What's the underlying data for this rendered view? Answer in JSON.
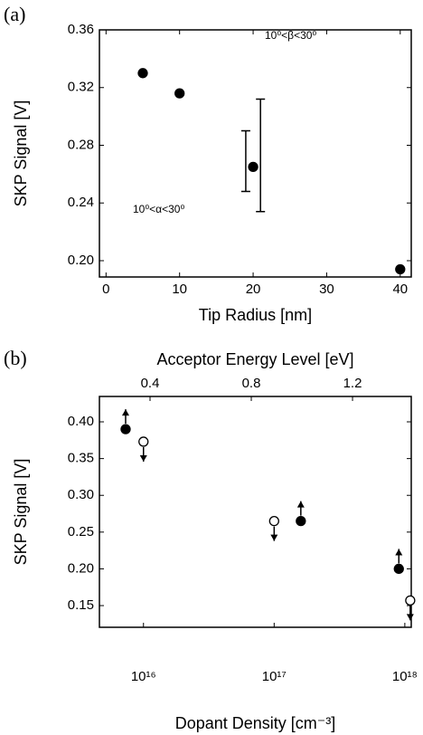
{
  "chart_data": [
    {
      "type": "scatter",
      "panel_label": "(a)",
      "xlabel": "Tip Radius [nm]",
      "ylabel": "SKP Signal [V]",
      "x": [
        5,
        10,
        20,
        40
      ],
      "values": [
        0.33,
        0.316,
        0.265,
        0.194
      ],
      "color": "#000000",
      "xlim": [
        -0.9,
        41.5
      ],
      "ylim": [
        0.1887,
        0.36
      ],
      "xticks": [
        0,
        10,
        20,
        30,
        40
      ],
      "yticks": [
        {
          "value": 0.2,
          "label": "0.20"
        },
        0.24,
        0.28,
        0.32,
        0.36
      ],
      "error_bars": [
        {
          "x": 19,
          "low": 0.248,
          "high": 0.29
        },
        {
          "x": 21,
          "low": 0.234,
          "high": 0.312
        }
      ],
      "annotations": [
        "10⁰<β<30⁰",
        "10⁰<α<30⁰"
      ]
    },
    {
      "type": "scatter",
      "panel_label": "(b)",
      "xlabel": "Dopant Density [cm⁻³]",
      "x2label": "Acceptor Energy Level [eV]",
      "ylabel": "SKP Signal [V]",
      "xscale": "log",
      "color": "#000000",
      "xlim": [
        4600000000000000.0,
        1.12e+18
      ],
      "ylim": [
        0.1205,
        0.4345
      ],
      "x2lim": [
        0.2,
        1.432
      ],
      "xticks": [
        {
          "value": 1e+16,
          "label": "10¹⁶"
        },
        {
          "value": 1e+17,
          "label": "10¹⁷"
        },
        {
          "value": 1e+18,
          "label": "10¹⁸"
        }
      ],
      "x2ticks": [
        0.4,
        0.8,
        1.2
      ],
      "yticks": [
        0.15,
        {
          "value": 0.2,
          "label": "0.20"
        },
        0.25,
        {
          "value": 0.3,
          "label": "0.30"
        },
        0.35,
        {
          "value": 0.4,
          "label": "0.40"
        }
      ],
      "series": [
        {
          "marker": "filled",
          "arrow": "up",
          "x": [
            7300000000000000.0,
            1.6e+17,
            9e+17
          ],
          "values": [
            0.39,
            0.265,
            0.2
          ]
        },
        {
          "marker": "open",
          "arrow": "down",
          "x": [
            1e+16,
            1e+17,
            1.1e+18
          ],
          "values": [
            0.373,
            0.265,
            0.157
          ]
        }
      ]
    }
  ]
}
